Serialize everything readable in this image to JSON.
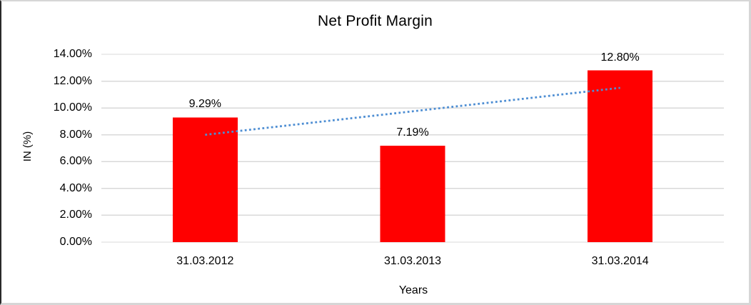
{
  "chart_data": {
    "type": "bar",
    "title": "Net Profit Margin",
    "xlabel": "Years",
    "ylabel": "IN (%)",
    "categories": [
      "31.03.2012",
      "31.03.2013",
      "31.03.2014"
    ],
    "values": [
      9.29,
      7.19,
      12.8
    ],
    "data_labels": [
      "9.29%",
      "7.19%",
      "12.80%"
    ],
    "ylim": [
      0,
      14
    ],
    "y_tick_step": 2,
    "y_tick_labels": [
      "0.00%",
      "2.00%",
      "4.00%",
      "6.00%",
      "8.00%",
      "10.00%",
      "12.00%",
      "14.00%"
    ],
    "grid": true,
    "legend": "none",
    "bar_color": "#ff0000",
    "grid_color": "#d9d9d9",
    "text_color": "#000000",
    "background_color": "#ffffff",
    "trendline": {
      "type": "linear",
      "style": "dotted",
      "color": "#4e8ed3",
      "start_value": 8.0,
      "end_value": 11.5
    }
  }
}
